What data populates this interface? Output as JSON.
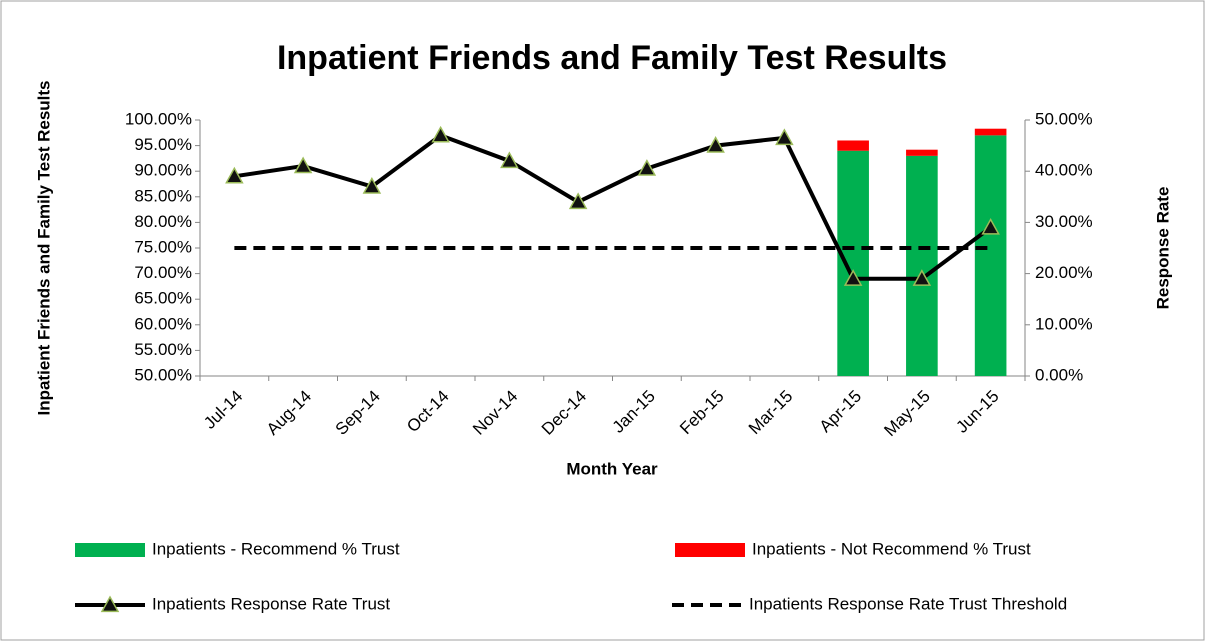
{
  "chart_data": {
    "type": "combo",
    "title": "Inpatient Friends and Family Test Results",
    "xlabel": "Month Year",
    "ylabel": "Inpatient Friends and Family Test Results",
    "y2label": "Response Rate",
    "categories": [
      "Jul-14",
      "Aug-14",
      "Sep-14",
      "Oct-14",
      "Nov-14",
      "Dec-14",
      "Jan-15",
      "Feb-15",
      "Mar-15",
      "Apr-15",
      "May-15",
      "Jun-15"
    ],
    "series": [
      {
        "name": "Inpatients - Recommend % Trust",
        "type": "bar",
        "color": "#00b050",
        "values": [
          null,
          null,
          null,
          null,
          null,
          null,
          null,
          null,
          null,
          94,
          93,
          97
        ]
      },
      {
        "name": "Inpatients - Not Recommend % Trust",
        "type": "bar",
        "color": "#ff0000",
        "values": [
          null,
          null,
          null,
          null,
          null,
          null,
          null,
          null,
          null,
          2,
          1.2,
          1.3
        ]
      },
      {
        "name": "Inpatients Response Rate Trust",
        "type": "line",
        "axis": "y2",
        "color": "#000000",
        "marker": "triangle",
        "values": [
          39,
          41,
          37,
          47,
          42,
          34,
          40.5,
          45,
          46.5,
          19,
          19,
          29
        ]
      },
      {
        "name": "Inpatients Response Rate Trust Threshold",
        "type": "line",
        "axis": "y2",
        "color": "#000000",
        "dashed": true,
        "values": [
          25,
          25,
          25,
          25,
          25,
          25,
          25,
          25,
          25,
          25,
          25,
          25
        ]
      }
    ],
    "stacked": true,
    "ylim": [
      50,
      100
    ],
    "yticks": [
      {
        "value": 50,
        "label": "50.00%"
      },
      {
        "value": 55,
        "label": "55.00%"
      },
      {
        "value": 60,
        "label": "60.00%"
      },
      {
        "value": 65,
        "label": "65.00%"
      },
      {
        "value": 70,
        "label": "70.00%"
      },
      {
        "value": 75,
        "label": "75.00%"
      },
      {
        "value": 80,
        "label": "80.00%"
      },
      {
        "value": 85,
        "label": "85.00%"
      },
      {
        "value": 90,
        "label": "90.00%"
      },
      {
        "value": 95,
        "label": "95.00%"
      },
      {
        "value": 100,
        "label": "100.00%"
      }
    ],
    "y2lim": [
      0,
      50
    ],
    "y2ticks": [
      {
        "value": 0,
        "label": "0.00%"
      },
      {
        "value": 10,
        "label": "10.00%"
      },
      {
        "value": 20,
        "label": "20.00%"
      },
      {
        "value": 30,
        "label": "30.00%"
      },
      {
        "value": 40,
        "label": "40.00%"
      },
      {
        "value": 50,
        "label": "50.00%"
      }
    ],
    "grid": false
  }
}
